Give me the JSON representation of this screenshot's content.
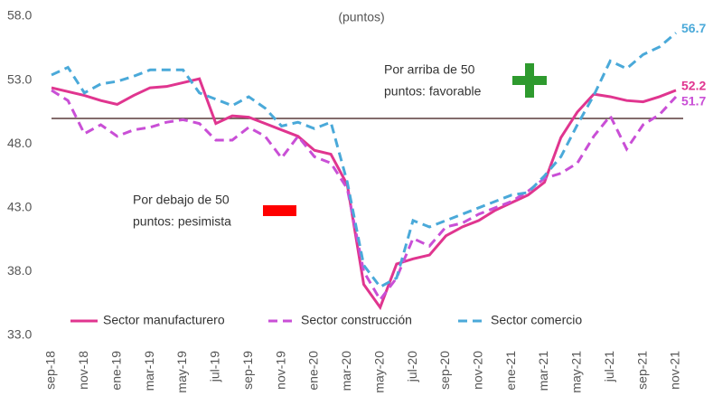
{
  "chart_data": {
    "type": "line",
    "title": "(puntos)",
    "categories": [
      "sep-18",
      null,
      "nov-18",
      null,
      "ene-19",
      null,
      "mar-19",
      null,
      "may-19",
      null,
      "jul-19",
      null,
      "sep-19",
      null,
      "nov-19",
      null,
      "ene-20",
      null,
      "mar-20",
      null,
      "may-20",
      null,
      "jul-20",
      null,
      "sep-20",
      null,
      "nov-20",
      null,
      "ene-21",
      null,
      "mar-21",
      null,
      "may-21",
      null,
      "jul-21",
      null,
      "sep-21",
      null,
      "nov-21"
    ],
    "series": [
      {
        "name": "Sector manufacturero",
        "color": "#e0358f",
        "style": "solid",
        "values": [
          52.4,
          52.1,
          51.8,
          51.4,
          51.1,
          51.8,
          52.4,
          52.5,
          52.8,
          53.1,
          49.6,
          50.2,
          50.1,
          49.6,
          49.1,
          48.6,
          47.5,
          47.2,
          44.8,
          37.0,
          35.2,
          38.6,
          39.0,
          39.3,
          40.8,
          41.5,
          42.0,
          42.8,
          43.4,
          44.0,
          45.0,
          48.5,
          50.5,
          51.9,
          51.7,
          51.4,
          51.3,
          51.7,
          52.2
        ]
      },
      {
        "name": "Sector construcción",
        "color": "#c94fd6",
        "style": "dashed",
        "values": [
          52.2,
          51.4,
          48.8,
          49.5,
          48.6,
          49.1,
          49.3,
          49.7,
          49.9,
          49.6,
          48.3,
          48.3,
          49.3,
          48.6,
          46.9,
          48.6,
          47.0,
          46.5,
          44.5,
          38.0,
          35.8,
          37.5,
          40.6,
          40.0,
          41.5,
          41.8,
          42.5,
          43.0,
          43.5,
          44.3,
          45.3,
          45.7,
          46.5,
          48.6,
          50.2,
          47.6,
          49.5,
          50.3,
          51.7
        ]
      },
      {
        "name": "Sector comercio",
        "color": "#4aa9d9",
        "style": "dashed",
        "values": [
          53.4,
          54.0,
          52.0,
          52.7,
          52.9,
          53.3,
          53.8,
          53.8,
          53.8,
          52.0,
          51.5,
          51.0,
          51.7,
          50.8,
          49.4,
          49.7,
          49.2,
          49.7,
          45.0,
          38.5,
          36.8,
          37.5,
          42.0,
          41.5,
          42.0,
          42.5,
          43.0,
          43.5,
          44.0,
          44.2,
          45.5,
          47.0,
          49.5,
          51.8,
          54.5,
          53.9,
          55.0,
          55.6,
          56.7
        ]
      }
    ],
    "ylim": [
      33,
      58
    ],
    "yticks": [
      {
        "value": 33,
        "label": "33.0"
      },
      {
        "value": 38,
        "label": "38.0"
      },
      {
        "value": 43,
        "label": "43.0"
      },
      {
        "value": 48,
        "label": "48.0"
      },
      {
        "value": 53,
        "label": "53.0"
      },
      {
        "value": 58,
        "label": "58.0"
      }
    ],
    "reference_line": 50,
    "grid": false,
    "annotations": [
      {
        "lines": [
          "Por arriba de 50",
          "puntos: favorable"
        ]
      },
      {
        "lines": [
          "Por debajo de 50",
          "puntos: pesimista"
        ]
      }
    ]
  }
}
